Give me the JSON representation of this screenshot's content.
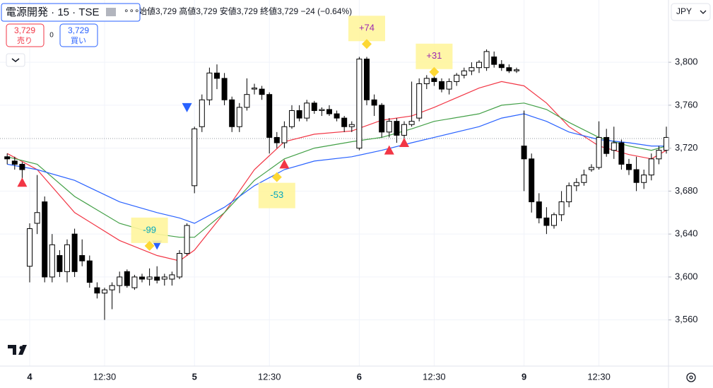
{
  "chart_data": {
    "type": "candlestick",
    "title": "電源開発 · 15 · TSE",
    "ohlc_line": "始値3,729 高値3,729 安値3,729 終値3,729 −24 (−0.64%)",
    "sell_price": "3,729",
    "sell_label": "売り",
    "spread": "0",
    "buy_price": "3,729",
    "buy_label": "買い",
    "currency": "JPY",
    "categories": [
      null,
      null,
      null,
      "4",
      null,
      null,
      null,
      null,
      null,
      null,
      null,
      null,
      null,
      "12:30",
      null,
      null,
      null,
      null,
      null,
      null,
      null,
      null,
      null,
      null,
      null,
      "5",
      null,
      null,
      null,
      null,
      null,
      null,
      null,
      null,
      null,
      "12:30",
      null,
      null,
      null,
      null,
      null,
      null,
      null,
      null,
      null,
      null,
      null,
      "6",
      null,
      null,
      null,
      null,
      null,
      null,
      null,
      null,
      null,
      "12:30",
      null,
      null,
      null,
      null,
      null,
      null,
      null,
      null,
      null,
      null,
      null,
      "9",
      null,
      null,
      null,
      null,
      null,
      null,
      null,
      null,
      null,
      "12:30",
      null,
      null,
      null,
      null,
      null,
      null,
      null,
      null,
      null
    ],
    "open": [
      3712,
      3708,
      3705,
      3610,
      3650,
      3670,
      3600,
      3620,
      3605,
      3640,
      3620,
      3615,
      3590,
      3585,
      3588,
      3592,
      3605,
      3590,
      3600,
      3598,
      3600,
      3598,
      3598,
      3600,
      3622,
      3685,
      3740,
      3765,
      3790,
      3785,
      3765,
      3740,
      3758,
      3775,
      3775,
      3770,
      3730,
      3725,
      3740,
      3755,
      3748,
      3762,
      3755,
      3756,
      3752,
      3748,
      3740,
      3720,
      3803,
      3765,
      3760,
      3735,
      3745,
      3732,
      3742,
      3748,
      3780,
      3785,
      3782,
      3775,
      3782,
      3788,
      3792,
      3795,
      3795,
      3805,
      3798,
      3795,
      3792,
      3722,
      3710,
      3670,
      3655,
      3648,
      3658,
      3670,
      3685,
      3688,
      3700,
      3702,
      3730,
      3718,
      3725,
      3705,
      3700,
      3688,
      3695,
      3710,
      3718
    ],
    "high": [
      3715,
      3712,
      3707,
      3650,
      3695,
      3675,
      3640,
      3625,
      3635,
      3645,
      3635,
      3620,
      3595,
      3590,
      3595,
      3605,
      3607,
      3602,
      3603,
      3608,
      3610,
      3603,
      3605,
      3625,
      3650,
      3740,
      3770,
      3795,
      3798,
      3790,
      3768,
      3762,
      3785,
      3780,
      3778,
      3772,
      3735,
      3745,
      3760,
      3760,
      3765,
      3764,
      3758,
      3760,
      3755,
      3750,
      3745,
      3805,
      3805,
      3770,
      3762,
      3748,
      3748,
      3745,
      3782,
      3785,
      3788,
      3790,
      3785,
      3785,
      3790,
      3795,
      3800,
      3802,
      3812,
      3810,
      3802,
      3798,
      3795,
      3755,
      3715,
      3678,
      3665,
      3660,
      3680,
      3688,
      3692,
      3700,
      3705,
      3745,
      3738,
      3740,
      3728,
      3710,
      3712,
      3700,
      3715,
      3722,
      3740
    ],
    "low": [
      3705,
      3700,
      3690,
      3595,
      3640,
      3595,
      3595,
      3600,
      3595,
      3600,
      3610,
      3590,
      3580,
      3560,
      3570,
      3585,
      3590,
      3588,
      3595,
      3592,
      3594,
      3592,
      3592,
      3598,
      3620,
      3678,
      3735,
      3760,
      3775,
      3760,
      3735,
      3735,
      3755,
      3770,
      3765,
      3715,
      3720,
      3720,
      3738,
      3745,
      3745,
      3752,
      3750,
      3750,
      3745,
      3735,
      3735,
      3718,
      3760,
      3750,
      3730,
      3730,
      3725,
      3728,
      3740,
      3745,
      3775,
      3778,
      3772,
      3770,
      3778,
      3785,
      3788,
      3790,
      3792,
      3795,
      3792,
      3790,
      3790,
      3680,
      3660,
      3650,
      3640,
      3645,
      3652,
      3665,
      3680,
      3685,
      3698,
      3700,
      3712,
      3710,
      3700,
      3695,
      3680,
      3682,
      3690,
      3705,
      3715
    ],
    "close": [
      3710,
      3705,
      3700,
      3645,
      3660,
      3600,
      3630,
      3605,
      3630,
      3605,
      3615,
      3595,
      3585,
      3588,
      3592,
      3600,
      3592,
      3600,
      3598,
      3600,
      3597,
      3600,
      3602,
      3622,
      3648,
      3738,
      3765,
      3790,
      3785,
      3765,
      3740,
      3758,
      3770,
      3776,
      3770,
      3730,
      3725,
      3740,
      3755,
      3748,
      3762,
      3755,
      3756,
      3752,
      3748,
      3740,
      3742,
      3803,
      3765,
      3760,
      3735,
      3745,
      3732,
      3742,
      3745,
      3780,
      3785,
      3782,
      3775,
      3782,
      3788,
      3792,
      3795,
      3800,
      3810,
      3798,
      3795,
      3792,
      3793,
      3710,
      3670,
      3655,
      3648,
      3658,
      3670,
      3685,
      3688,
      3695,
      3702,
      3730,
      3715,
      3725,
      3705,
      3700,
      3688,
      3695,
      3710,
      3718,
      3730
    ],
    "up_color": "#ffffff",
    "down_color": "#000000",
    "series": [
      {
        "color": "#f23645",
        "x": [
          0,
          4,
          9,
          15,
          20,
          23,
          25,
          29,
          33,
          37,
          41,
          46,
          50,
          54,
          57,
          63,
          66,
          69,
          72,
          75,
          79,
          83,
          86,
          88
        ],
        "values": [
          3715,
          3700,
          3660,
          3634,
          3620,
          3615,
          3625,
          3660,
          3700,
          3726,
          3733,
          3736,
          3746,
          3750,
          3758,
          3776,
          3782,
          3778,
          3762,
          3740,
          3722,
          3714,
          3710,
          3718
        ]
      },
      {
        "color": "#43a047",
        "x": [
          0,
          4,
          9,
          15,
          20,
          23,
          25,
          29,
          33,
          37,
          41,
          46,
          50,
          54,
          57,
          63,
          66,
          69,
          72,
          75,
          79,
          83,
          86,
          88
        ],
        "values": [
          3712,
          3705,
          3675,
          3650,
          3640,
          3637,
          3637,
          3660,
          3690,
          3710,
          3720,
          3726,
          3730,
          3738,
          3745,
          3752,
          3760,
          3762,
          3756,
          3744,
          3730,
          3722,
          3718,
          3722
        ]
      },
      {
        "color": "#2962ff",
        "x": [
          0,
          4,
          9,
          15,
          20,
          23,
          25,
          29,
          33,
          37,
          41,
          46,
          50,
          54,
          57,
          63,
          66,
          69,
          72,
          75,
          79,
          83,
          86,
          88
        ],
        "values": [
          3705,
          3700,
          3690,
          3670,
          3660,
          3655,
          3650,
          3665,
          3685,
          3700,
          3708,
          3712,
          3718,
          3725,
          3730,
          3740,
          3748,
          3752,
          3745,
          3735,
          3728,
          3725,
          3722,
          3722
        ]
      }
    ],
    "markers": [
      {
        "shape": "triangle-up",
        "color": "#f23645",
        "x": 2,
        "value": 3688
      },
      {
        "shape": "triangle-down",
        "color": "#2962ff",
        "x": 20,
        "value": 3630
      },
      {
        "shape": "triangle-down",
        "color": "#2962ff",
        "x": 24,
        "value": 3758
      },
      {
        "shape": "triangle-up",
        "color": "#f23645",
        "x": 37,
        "value": 3705
      },
      {
        "shape": "triangle-up",
        "color": "#f23645",
        "x": 51,
        "value": 3718
      },
      {
        "shape": "triangle-up",
        "color": "#f23645",
        "x": 53,
        "value": 3725
      }
    ],
    "annotations": [
      {
        "x": 19,
        "value": 3629,
        "label": "-99",
        "color": "#00a6c0"
      },
      {
        "x": 36,
        "value": 3693,
        "label": "-53",
        "color": "#00a6c0"
      },
      {
        "x": 48,
        "value": 3817,
        "label": "+74",
        "color": "#9c27b0"
      },
      {
        "x": 57,
        "value": 3791,
        "label": "+31",
        "color": "#9c27b0"
      }
    ],
    "last_price": 3729,
    "ylim": [
      3517,
      3858
    ],
    "yticks": [
      {
        "value": 3560,
        "label": "3,560"
      },
      {
        "value": 3600,
        "label": "3,600"
      },
      {
        "value": 3640,
        "label": "3,640"
      },
      {
        "value": 3680,
        "label": "3,680"
      },
      {
        "value": 3720,
        "label": "3,720"
      },
      {
        "value": 3760,
        "label": "3,760"
      },
      {
        "value": 3800,
        "label": "3,800"
      }
    ]
  }
}
